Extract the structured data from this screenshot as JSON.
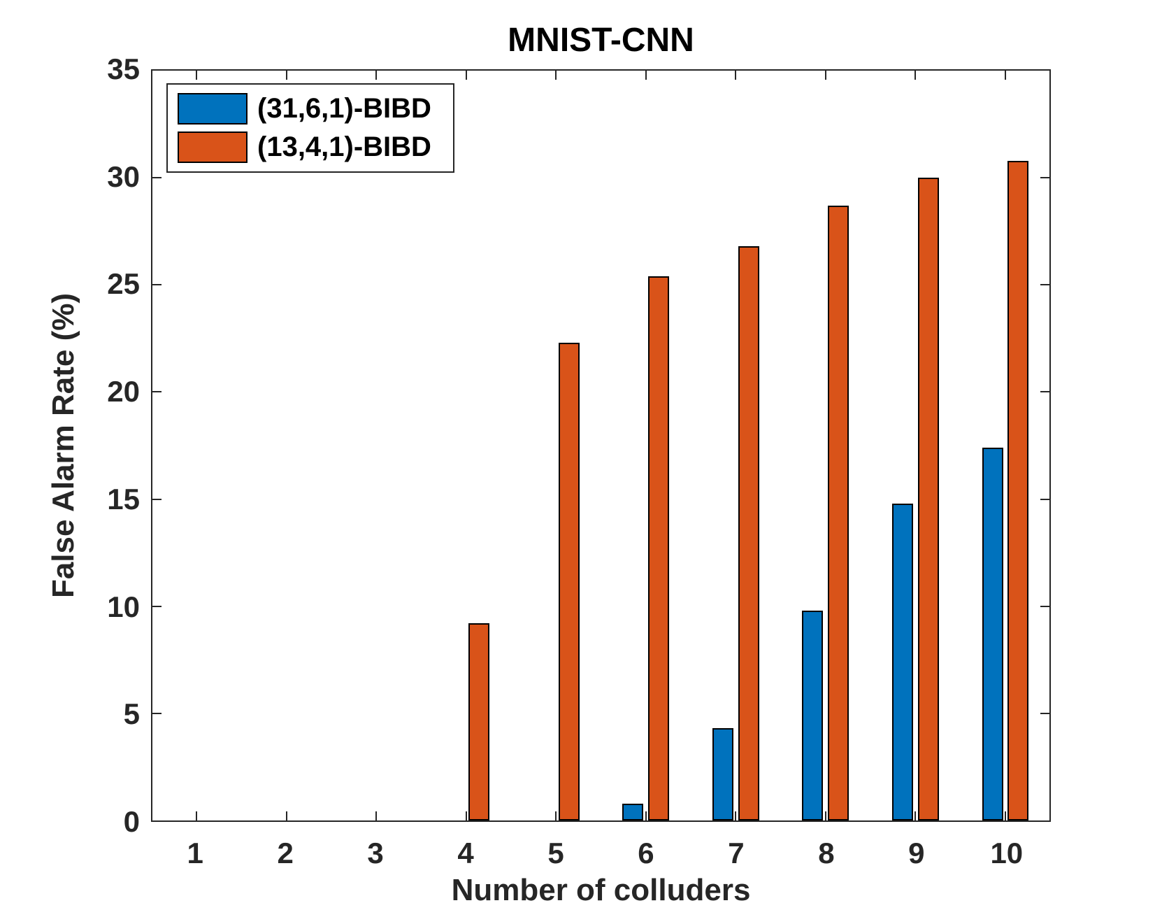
{
  "chart_data": {
    "type": "bar",
    "title": "MNIST-CNN",
    "xlabel": "Number of colluders",
    "ylabel": "False Alarm Rate (%)",
    "categories": [
      1,
      2,
      3,
      4,
      5,
      6,
      7,
      8,
      9,
      10
    ],
    "series": [
      {
        "name": "(31,6,1)-BIBD",
        "color": "#0072BD",
        "values": [
          0,
          0,
          0,
          0,
          0,
          0.8,
          4.3,
          9.8,
          14.8,
          17.4
        ]
      },
      {
        "name": "(13,4,1)-BIBD",
        "color": "#D95319",
        "values": [
          0,
          0,
          0,
          9.2,
          22.3,
          25.4,
          26.8,
          28.7,
          30.0,
          30.8
        ]
      }
    ],
    "xlim": [
      0.51,
      10.49
    ],
    "ylim": [
      0,
      35
    ],
    "xticks": [
      1,
      2,
      3,
      4,
      5,
      6,
      7,
      8,
      9,
      10
    ],
    "yticks": [
      0,
      5,
      10,
      15,
      20,
      25,
      30,
      35
    ],
    "grid": false,
    "legend_position": "top-left",
    "bar_edge_color": "#000000",
    "axis_color": "#262626"
  }
}
